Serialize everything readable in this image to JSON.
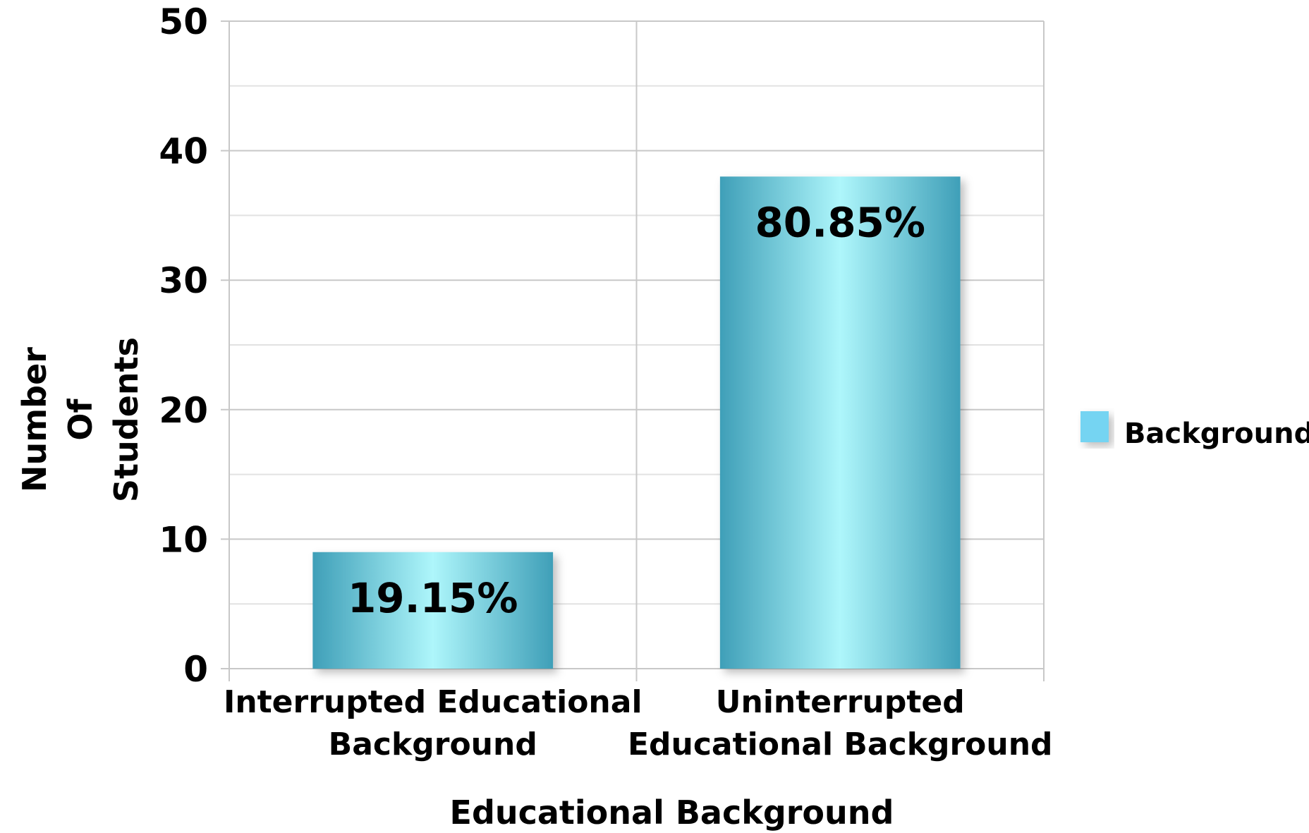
{
  "chart_data": {
    "type": "bar",
    "title": "",
    "categories": [
      [
        "Interrupted Educational",
        "Background"
      ],
      [
        "Uninterrupted",
        "Educational Background"
      ]
    ],
    "series": [
      {
        "name": "Background",
        "values": [
          9,
          38
        ],
        "data_labels": [
          "19.15%",
          "80.85%"
        ]
      }
    ],
    "xlabel": "Educational Background",
    "ylabel": [
      "Number",
      "Of",
      "Students"
    ],
    "ylim": [
      0,
      50
    ],
    "yticks": [
      "0",
      "10",
      "20",
      "30",
      "40",
      "50"
    ],
    "grid": true,
    "legend_position": "right",
    "colors": {
      "bar_edge": "#3f9fb8",
      "bar_center": "#aef6fb",
      "legend_swatch": "#74d4f2",
      "grid_major": "#c8c8c8",
      "grid_minor": "#e2e2e2"
    }
  }
}
